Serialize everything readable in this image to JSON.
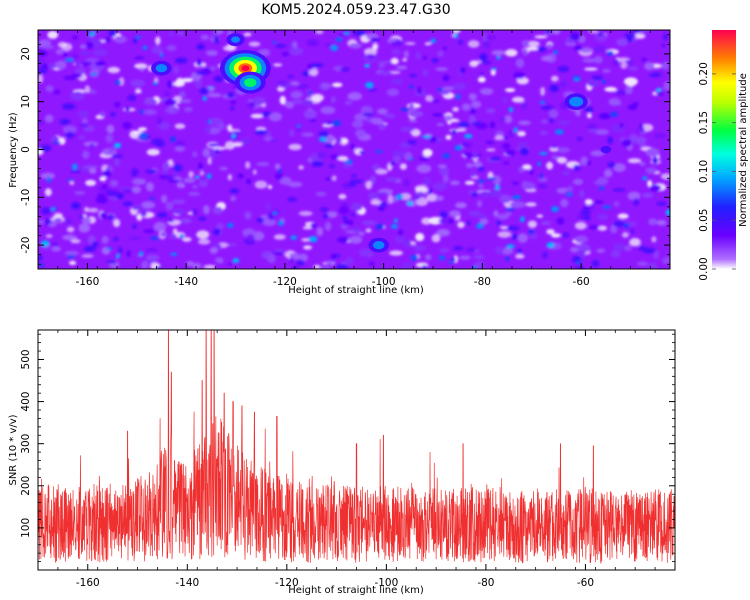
{
  "title": "KOM5.2024.059.23.47.G30",
  "chart_data": [
    {
      "type": "heatmap",
      "xlabel": "Height of straight line (km)",
      "ylabel": "Frequency (Hz)",
      "xlim": [
        -170,
        -42
      ],
      "ylim": [
        -25,
        25
      ],
      "xticks": [
        -160,
        -140,
        -120,
        -100,
        -80,
        -60
      ],
      "yticks": [
        -20,
        -10,
        0,
        10,
        20
      ],
      "colorbar": {
        "label": "Normalized spectral amplitude",
        "range": [
          0,
          0.245
        ],
        "ticks": [
          "0.00",
          "0.05",
          "0.10",
          "0.15",
          "0.20"
        ],
        "tick_values": [
          0,
          0.05,
          0.1,
          0.15,
          0.2
        ],
        "colormap": [
          "#ffffff",
          "#a060ff",
          "#6a00ff",
          "#2020ff",
          "#00c8ff",
          "#00ff40",
          "#ffff00",
          "#ff7f00",
          "#ff0040"
        ]
      },
      "background_color": "#9018ff",
      "hotspots": [
        {
          "x": -128,
          "y": 17,
          "value": 0.24
        },
        {
          "x": -127,
          "y": 14,
          "value": 0.16
        },
        {
          "x": -145,
          "y": 17,
          "value": 0.12
        },
        {
          "x": -130,
          "y": 23,
          "value": 0.11
        },
        {
          "x": -101,
          "y": -20,
          "value": 0.12
        },
        {
          "x": -61,
          "y": 10,
          "value": 0.13
        },
        {
          "x": -55,
          "y": 0,
          "value": 0.08
        }
      ]
    },
    {
      "type": "line",
      "xlabel": "Height of straight line (km)",
      "ylabel": "SNR (10 * v/v)",
      "xlim": [
        -170,
        -42
      ],
      "ylim": [
        0,
        570
      ],
      "xticks": [
        -160,
        -140,
        -120,
        -100,
        -80,
        -60
      ],
      "yticks": [
        100,
        200,
        300,
        400,
        500
      ],
      "color": "#f03030",
      "profile": {
        "x": [
          -170,
          -160,
          -150,
          -147,
          -144,
          -142,
          -140,
          -137,
          -134,
          -131,
          -128,
          -124,
          -120,
          -115,
          -110,
          -100,
          -90,
          -80,
          -70,
          -60,
          -50,
          -42
        ],
        "baseline": [
          110,
          112,
          120,
          130,
          180,
          150,
          140,
          170,
          200,
          180,
          150,
          130,
          118,
          112,
          110,
          108,
          106,
          106,
          105,
          105,
          104,
          104
        ]
      },
      "peaks": [
        {
          "x": -143.8,
          "y": 570
        },
        {
          "x": -143.2,
          "y": 470
        },
        {
          "x": -136.2,
          "y": 570
        },
        {
          "x": -135.2,
          "y": 570
        },
        {
          "x": -134.6,
          "y": 570
        },
        {
          "x": -137.0,
          "y": 450
        },
        {
          "x": -132.6,
          "y": 420
        },
        {
          "x": -130.8,
          "y": 400
        },
        {
          "x": -129.0,
          "y": 390
        },
        {
          "x": -126.5,
          "y": 375
        },
        {
          "x": -122.0,
          "y": 365
        },
        {
          "x": -152.0,
          "y": 330
        },
        {
          "x": -106.0,
          "y": 300
        },
        {
          "x": -100.6,
          "y": 320
        },
        {
          "x": -84.6,
          "y": 300
        },
        {
          "x": -65.0,
          "y": 300
        },
        {
          "x": -58.4,
          "y": 295
        }
      ]
    }
  ]
}
